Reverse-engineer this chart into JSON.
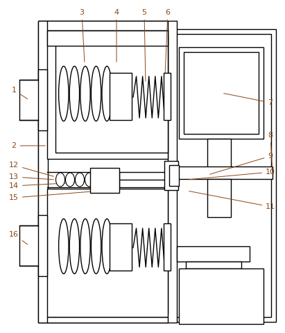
{
  "bg_color": "#ffffff",
  "line_color": "#000000",
  "label_color": "#8B4513",
  "fig_width": 4.11,
  "fig_height": 4.8,
  "dpi": 100
}
